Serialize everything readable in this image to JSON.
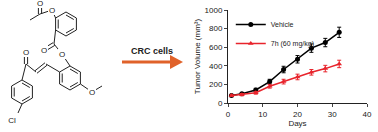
{
  "scheme": {
    "arrow_label": "CRC cells",
    "atoms": [
      "O",
      "O",
      "O",
      "O",
      "O",
      "O",
      "Cl"
    ]
  },
  "chart_data": {
    "type": "line",
    "x_label": "Days",
    "y_label": "Tumor Volume (mm³)",
    "x": [
      1,
      4,
      8,
      12,
      16,
      20,
      24,
      28,
      32
    ],
    "series": [
      {
        "name": "Vehicle",
        "color": "#000000",
        "marker": "circle",
        "line_style": "solid",
        "values": [
          80,
          100,
          140,
          230,
          360,
          470,
          590,
          650,
          760
        ],
        "errors": [
          10,
          12,
          18,
          25,
          35,
          40,
          45,
          45,
          55
        ]
      },
      {
        "name": "7h (60 mg/kg)",
        "color": "#e8242c",
        "marker": "triangle",
        "line_style": "solid",
        "values": [
          80,
          90,
          110,
          180,
          230,
          280,
          330,
          370,
          420
        ],
        "errors": [
          10,
          12,
          15,
          20,
          25,
          30,
          30,
          35,
          40
        ]
      }
    ],
    "xlim": [
      0,
      40
    ],
    "xticks": [
      0,
      10,
      20,
      30,
      40
    ],
    "ylim": [
      0,
      1000
    ],
    "yticks": [
      0,
      200,
      400,
      600,
      800,
      1000
    ],
    "grid": false,
    "legend": "top-left"
  }
}
